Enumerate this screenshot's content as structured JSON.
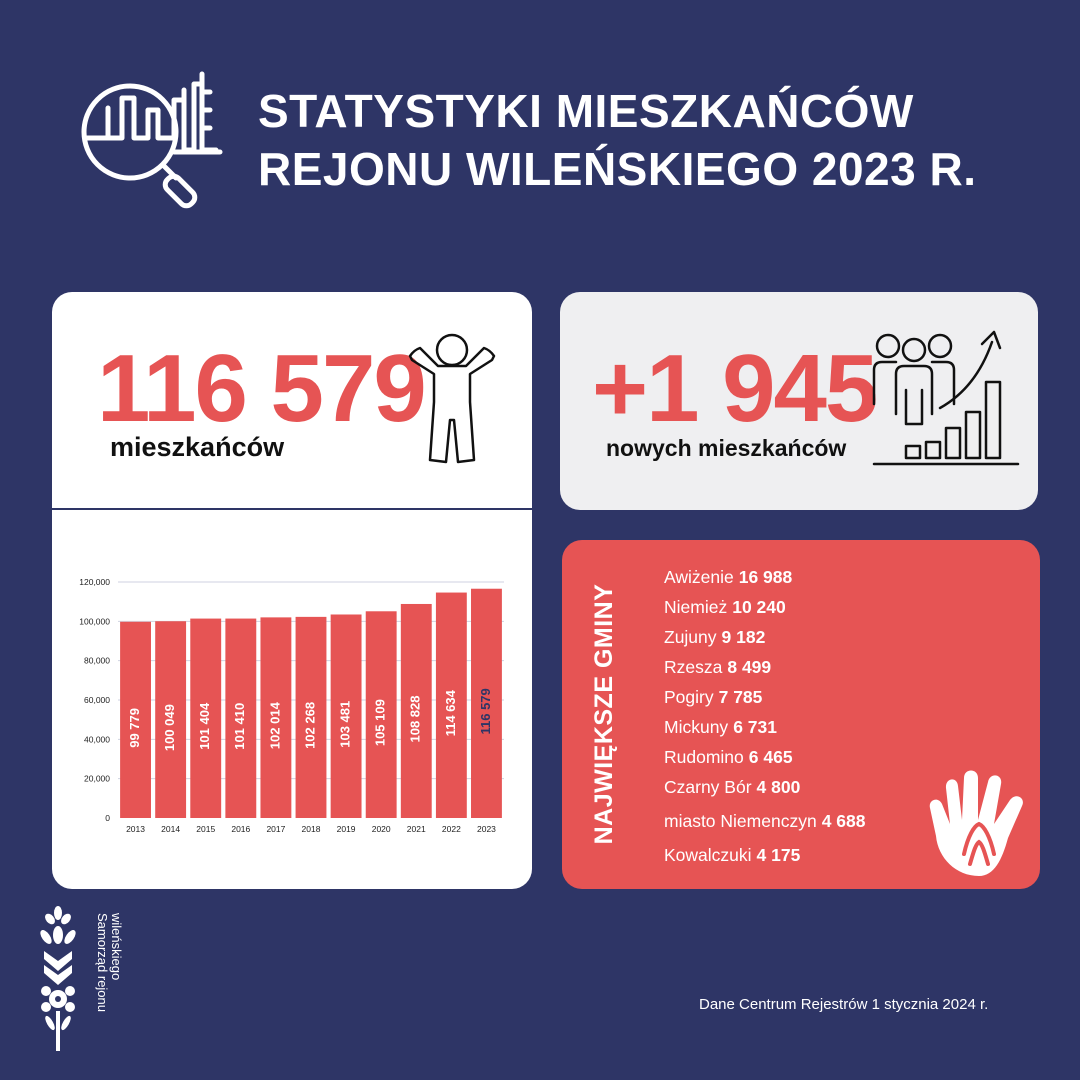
{
  "header": {
    "title_line1": "STATYSTYKI MIESZKAŃCÓW",
    "title_line2": "REJONU WILEŃSKIEGO 2023 R.",
    "icon": "magnifier-chart-icon"
  },
  "residents": {
    "value": "116 579",
    "label": "mieszkańców",
    "icon": "person-icon"
  },
  "new_residents": {
    "value": "+1 945",
    "label": "nowych mieszkańców",
    "icon": "people-growth-icon"
  },
  "chart_data": {
    "type": "bar",
    "categories": [
      "2013",
      "2014",
      "2015",
      "2016",
      "2017",
      "2018",
      "2019",
      "2020",
      "2021",
      "2022",
      "2023"
    ],
    "values": [
      99779,
      100049,
      101404,
      101410,
      102014,
      102268,
      103481,
      105109,
      108828,
      114634,
      116579
    ],
    "value_labels": [
      "99 779",
      "100 049",
      "101 404",
      "101 410",
      "102 014",
      "102 268",
      "103 481",
      "105 109",
      "108 828",
      "114 634",
      "116 579"
    ],
    "y_ticks": [
      0,
      20000,
      40000,
      60000,
      80000,
      100000,
      120000
    ],
    "y_tick_labels": [
      "0",
      "20,000",
      "40,000",
      "60,000",
      "80,000",
      "100,000",
      "120,000"
    ],
    "ylim": [
      0,
      120000
    ],
    "bar_color": "#e65454",
    "label_color": "#ffffff",
    "highlight_label_color": "#2e3566",
    "grid": true
  },
  "gminy": {
    "title": "NAJWIĘKSZE GMINY",
    "items": [
      {
        "name": "Awiżenie",
        "value": "16 988"
      },
      {
        "name": "Niemież",
        "value": "10 240"
      },
      {
        "name": "Zujuny",
        "value": "9 182"
      },
      {
        "name": "Rzesza",
        "value": "8 499"
      },
      {
        "name": "Pogiry",
        "value": "7 785"
      },
      {
        "name": "Mickuny",
        "value": "6 731"
      },
      {
        "name": "Rudomino",
        "value": "6 465"
      },
      {
        "name": "Czarny Bór",
        "value": "4 800"
      },
      {
        "name": "miasto Niemenczyn",
        "value": "4 688"
      },
      {
        "name": "Kowalczuki",
        "value": "4 175"
      }
    ],
    "icon": "hand-icon"
  },
  "logo": {
    "text_line1": "Samorząd rejonu",
    "text_line2": "wileńskiego",
    "icon": "folk-flower-logo-icon"
  },
  "source": "Dane Centrum Rejestrów 1 stycznia 2024 r.",
  "colors": {
    "background": "#2e3566",
    "accent": "#e65454",
    "card_light": "#efeff1",
    "white": "#ffffff"
  }
}
